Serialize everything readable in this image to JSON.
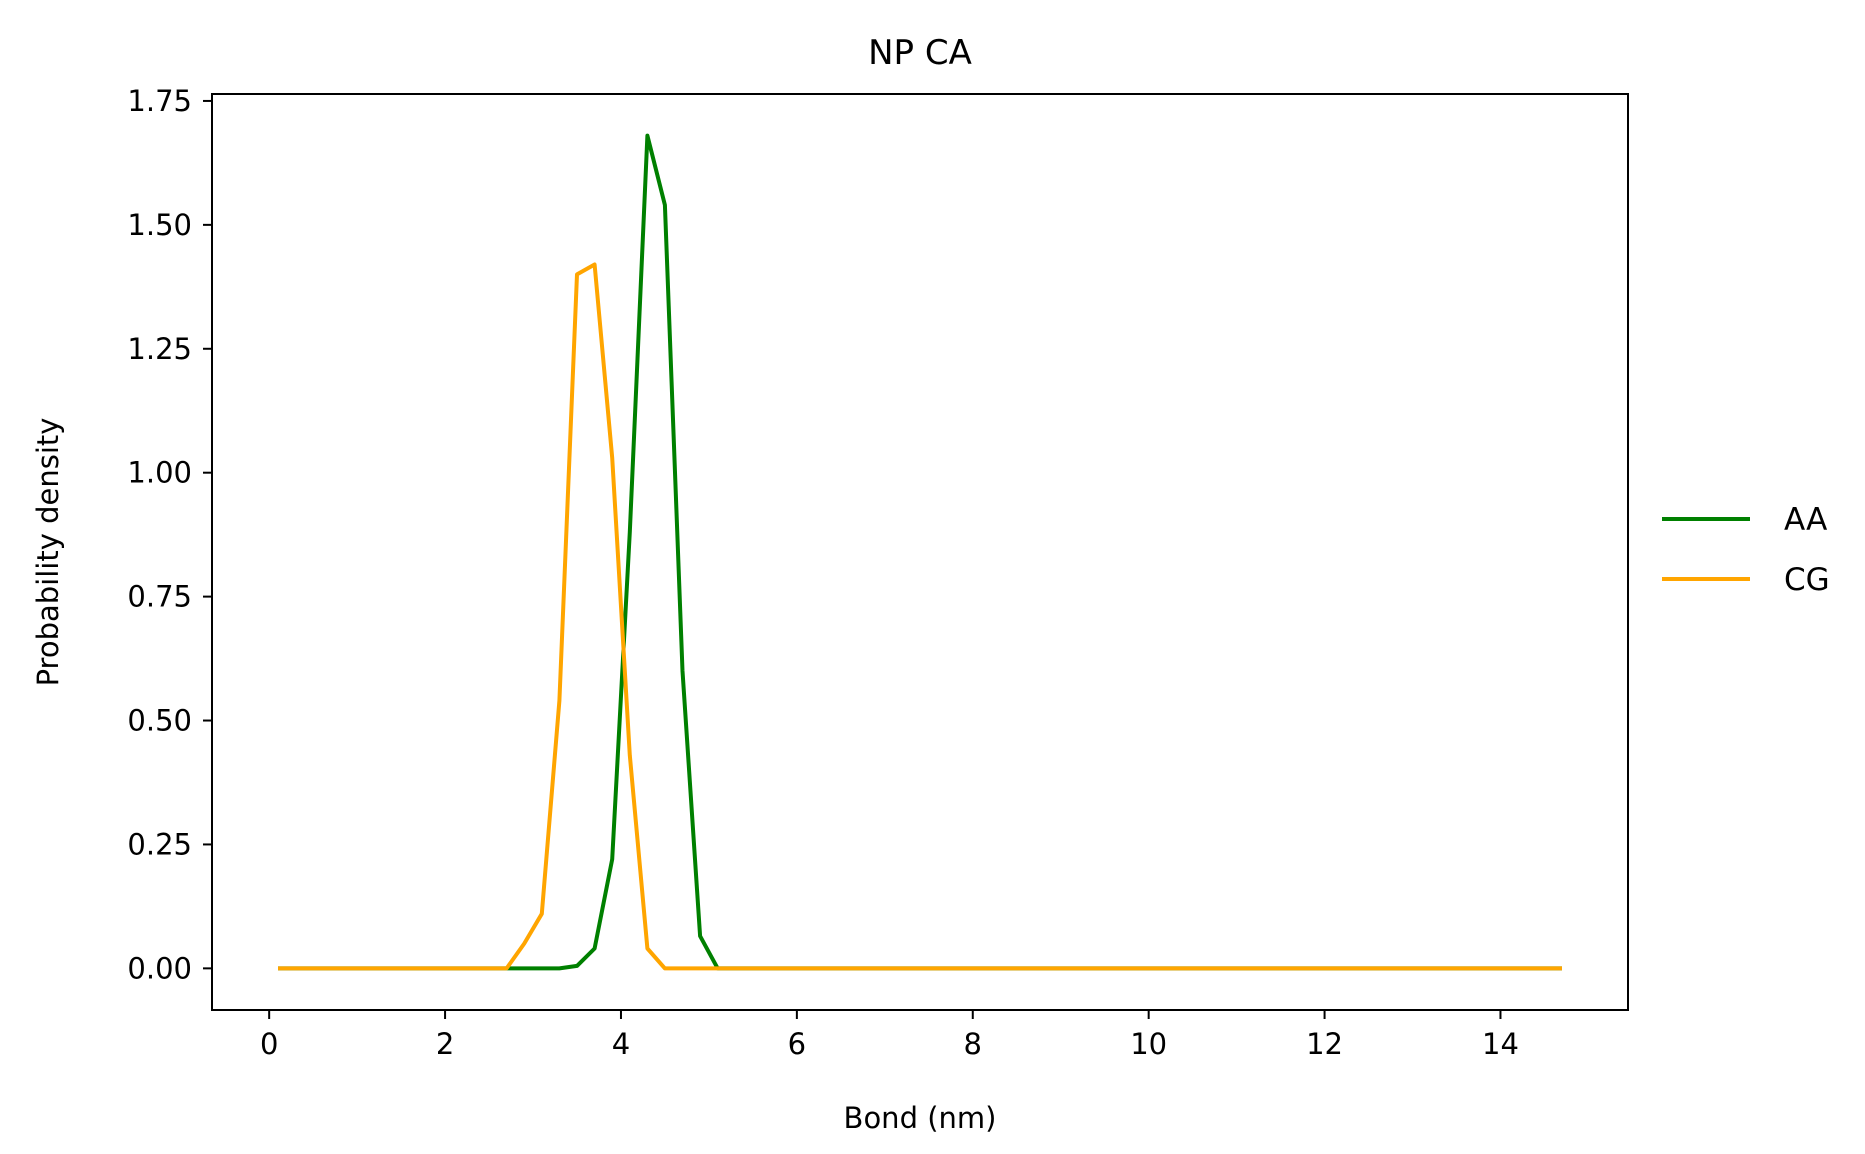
{
  "chart_data": {
    "type": "line",
    "title": "NP CA",
    "xlabel": "Bond (nm)",
    "ylabel": "Probability density",
    "xlim": [
      -0.65,
      15.45
    ],
    "ylim": [
      -0.084,
      1.764
    ],
    "xticks": [
      0,
      2,
      4,
      6,
      8,
      10,
      12,
      14
    ],
    "xtick_labels": [
      "0",
      "2",
      "4",
      "6",
      "8",
      "10",
      "12",
      "14"
    ],
    "yticks": [
      0.0,
      0.25,
      0.5,
      0.75,
      1.0,
      1.25,
      1.5,
      1.75
    ],
    "ytick_labels": [
      "0.00",
      "0.25",
      "0.50",
      "0.75",
      "1.00",
      "1.25",
      "1.50",
      "1.75"
    ],
    "grid": false,
    "legend_position": "right-outside",
    "series": [
      {
        "name": "AA",
        "color": "#008000",
        "points": [
          [
            0.1,
            0.0
          ],
          [
            2.7,
            0.0
          ],
          [
            3.1,
            0.0
          ],
          [
            3.3,
            0.0
          ],
          [
            3.5,
            0.005
          ],
          [
            3.7,
            0.04
          ],
          [
            3.9,
            0.22
          ],
          [
            4.1,
            0.88
          ],
          [
            4.3,
            1.68
          ],
          [
            4.5,
            1.54
          ],
          [
            4.7,
            0.6
          ],
          [
            4.9,
            0.065
          ],
          [
            5.1,
            0.0
          ],
          [
            6.0,
            0.0
          ],
          [
            8.0,
            0.0
          ],
          [
            10.0,
            0.0
          ],
          [
            12.0,
            0.0
          ],
          [
            14.7,
            0.0
          ]
        ]
      },
      {
        "name": "CG",
        "color": "#ffa500",
        "points": [
          [
            0.1,
            0.0
          ],
          [
            2.7,
            0.0
          ],
          [
            2.9,
            0.05
          ],
          [
            3.1,
            0.11
          ],
          [
            3.3,
            0.54
          ],
          [
            3.5,
            1.4
          ],
          [
            3.7,
            1.42
          ],
          [
            3.9,
            1.03
          ],
          [
            4.1,
            0.43
          ],
          [
            4.3,
            0.04
          ],
          [
            4.5,
            0.0
          ],
          [
            4.7,
            0.0
          ],
          [
            5.0,
            0.0
          ],
          [
            6.0,
            0.0
          ],
          [
            8.0,
            0.0
          ],
          [
            10.0,
            0.0
          ],
          [
            12.0,
            0.0
          ],
          [
            14.7,
            0.0
          ]
        ]
      }
    ]
  }
}
